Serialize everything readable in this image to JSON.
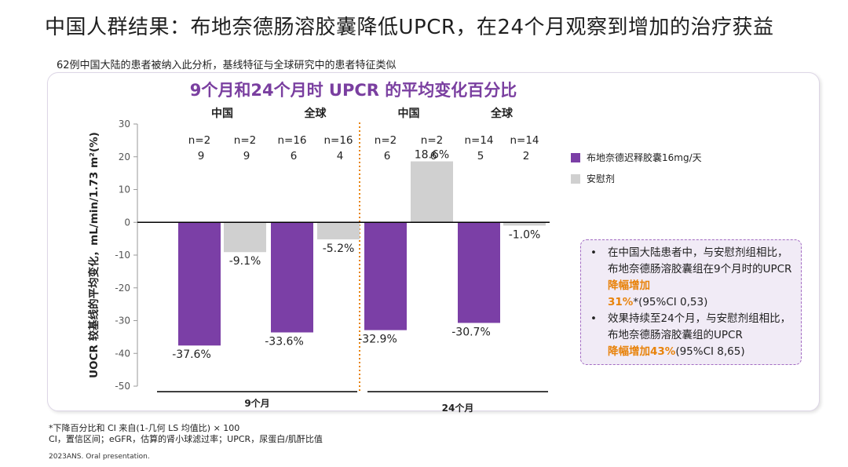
{
  "header": {
    "title": "中国人群结果：布地奈德肠溶胶囊降低UPCR，在24个月观察到增加的治疗获益",
    "subtitle": "62例中国大陆的患者被纳入此分析，基线特征与全球研究中的患者特征类似"
  },
  "colors": {
    "drug": "#7b3fa6",
    "placebo": "#d0d0d0",
    "accent": "#e8830c",
    "divider": "#e8830c"
  },
  "chart_data": {
    "type": "bar",
    "title": "9个月和24个月时 UPCR 的平均变化百分比",
    "ylabel": "UOCR 较基线的平均变化，mL/min/1.73 m²(%)",
    "ylim": [
      -50,
      30
    ],
    "yticks": [
      "30",
      "20",
      "10",
      "0",
      "-10",
      "-20",
      "-30",
      "-40",
      "-50"
    ],
    "legend_position": "right",
    "series": [
      {
        "name": "布地奈德迟释胶囊16mg/天",
        "color": "#7b3fa6"
      },
      {
        "name": "安慰剂",
        "color": "#d0d0d0"
      }
    ],
    "groups": [
      {
        "label": "中国",
        "timepoint": "9个月",
        "bars": [
          {
            "series": 0,
            "value": -37.6,
            "label": "-37.6%",
            "n": [
              "n=2",
              "9"
            ]
          },
          {
            "series": 1,
            "value": -9.1,
            "label": "-9.1%",
            "n": [
              "n=2",
              "9"
            ]
          }
        ]
      },
      {
        "label": "全球",
        "timepoint": "9个月",
        "bars": [
          {
            "series": 0,
            "value": -33.6,
            "label": "-33.6%",
            "n": [
              "n=16",
              "6"
            ]
          },
          {
            "series": 1,
            "value": -5.2,
            "label": "-5.2%",
            "n": [
              "n=16",
              "4"
            ]
          }
        ]
      },
      {
        "label": "中国",
        "timepoint": "24个月",
        "bars": [
          {
            "series": 0,
            "value": -32.9,
            "label": "-32.9%",
            "n": [
              "n=2",
              "6"
            ]
          },
          {
            "series": 1,
            "value": 18.6,
            "label": "18.6%",
            "n": [
              "n=2",
              "6"
            ]
          }
        ]
      },
      {
        "label": "全球",
        "timepoint": "24个月",
        "bars": [
          {
            "series": 0,
            "value": -30.7,
            "label": "-30.7%",
            "n": [
              "n=14",
              "5"
            ]
          },
          {
            "series": 1,
            "value": -1.0,
            "label": "-1.0%",
            "n": [
              "n=14",
              "2"
            ]
          }
        ]
      }
    ],
    "timepoints": [
      "9个月",
      "24个月"
    ]
  },
  "callout": {
    "bullet": "•",
    "item1_text": "在中国大陆患者中，与安慰剂组相比，布地奈德肠溶胶囊组在9个月时的UPCR",
    "item1_highlight1": "降幅增加",
    "item1_highlight2": "31%",
    "item1_tail": "*(95%CI 0,53)",
    "item2_text": "效果持续至24个月，与安慰剂组相比，布地奈德肠溶胶囊组的UPCR",
    "item2_highlight": "降幅增加43%",
    "item2_tail": "(95%CI 8,65)"
  },
  "footnote": {
    "line1": "*下降百分比和 CI 来自(1-几何 LS 均值比) × 100",
    "line2": "CI，置信区间；eGFR，估算的肾小球滤过率；UPCR，尿蛋白/肌酐比值",
    "source": "2023ANS. Oral presentation."
  }
}
